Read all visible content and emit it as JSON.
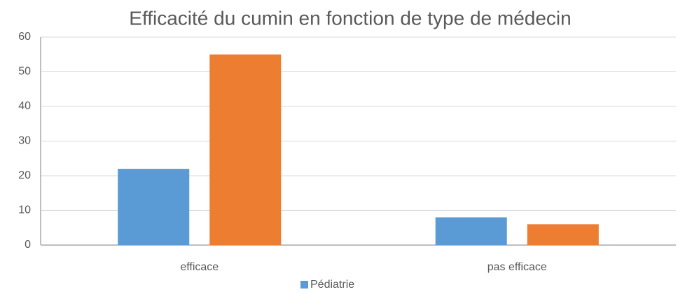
{
  "chart_data": {
    "type": "bar",
    "title": "Efficacité du cumin en fonction de type de médecin",
    "categories": [
      "efficace",
      "pas efficace"
    ],
    "series": [
      {
        "name": "Pédiatrie",
        "color": "#5b9bd5",
        "values": [
          22,
          8
        ]
      },
      {
        "color": "#ed7d31",
        "values": [
          55,
          6
        ]
      }
    ],
    "ylim": [
      0,
      60
    ],
    "yticks": [
      0,
      10,
      20,
      30,
      40,
      50,
      60
    ],
    "grid": true
  }
}
